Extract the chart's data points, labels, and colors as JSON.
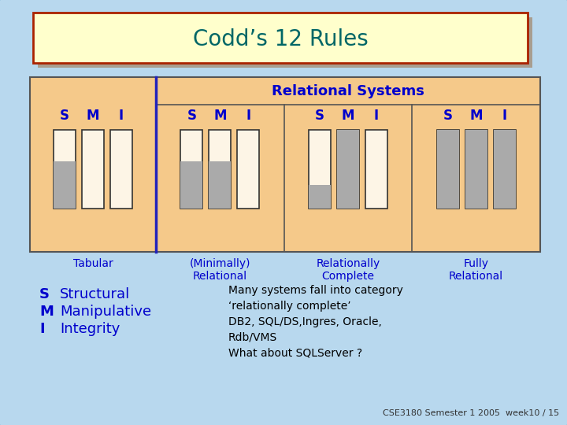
{
  "title": "Codd’s 12 Rules",
  "background_color": "#b8d8ee",
  "title_box_color": "#ffffcc",
  "title_box_border": "#aa2200",
  "title_text_color": "#006666",
  "main_box_color": "#f5c98a",
  "main_box_border": "#555555",
  "bar_outline_color": "#333333",
  "bar_fill_empty": "#fdf5e6",
  "bar_fill_shaded": "#aaaaaa",
  "divider_color": "#2222bb",
  "label_color": "#0000cc",
  "text_color": "#000000",
  "footer_color": "#333333",
  "groups": [
    {
      "name": "Tabular",
      "name2": "",
      "fills": [
        0.6,
        0.0,
        0.0
      ]
    },
    {
      "name": "(Minimally)",
      "name2": "Relational",
      "fills": [
        0.6,
        0.6,
        0.0
      ]
    },
    {
      "name": "Relationally",
      "name2": "Complete",
      "fills": [
        0.3,
        1.0,
        0.0
      ]
    },
    {
      "name": "Fully",
      "name2": "Relational",
      "fills": [
        1.0,
        1.0,
        1.0
      ]
    }
  ],
  "relational_systems_label": "Relational Systems",
  "note_lines": [
    "Many systems fall into category",
    "‘relationally complete’",
    "DB2, SQL/DS,Ingres, Oracle,",
    "Rdb/VMS",
    "What about SQLServer ?"
  ],
  "legend": [
    [
      "S",
      "Structural"
    ],
    [
      "M",
      "Manipulative"
    ],
    [
      "I",
      "Integrity"
    ]
  ],
  "footer": "CSE3180 Semester 1 2005  week10 / 15"
}
